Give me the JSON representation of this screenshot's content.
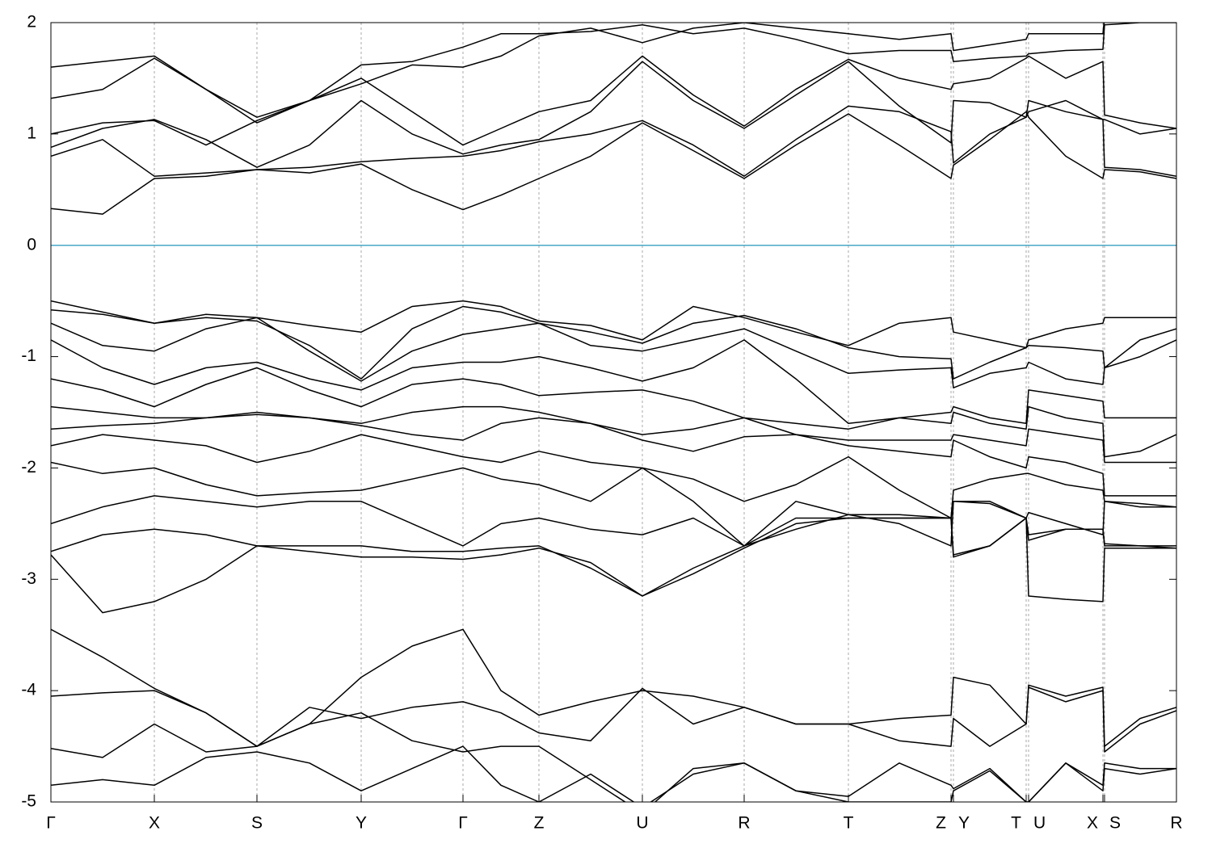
{
  "chart_data": {
    "type": "line",
    "x": [
      0,
      64,
      128,
      192,
      255,
      320,
      384,
      447,
      510,
      557,
      604,
      668,
      732,
      795,
      858,
      922,
      987,
      1050,
      1114,
      1117,
      1162,
      1207,
      1210,
      1256,
      1302,
      1304,
      1348,
      1393
    ],
    "xlim": [
      0,
      1393
    ],
    "xticks": [
      {
        "value": 0,
        "label": "Γ"
      },
      {
        "value": 128,
        "label": "X"
      },
      {
        "value": 255,
        "label": "S"
      },
      {
        "value": 384,
        "label": "Y"
      },
      {
        "value": 510,
        "label": "Γ"
      },
      {
        "value": 604,
        "label": "Z"
      },
      {
        "value": 732,
        "label": "U"
      },
      {
        "value": 858,
        "label": "R"
      },
      {
        "value": 987,
        "label": "T"
      },
      {
        "value": 1114,
        "label": "Z"
      },
      {
        "value": 1117,
        "label": "Y"
      },
      {
        "value": 1207,
        "label": "T"
      },
      {
        "value": 1210,
        "label": "U"
      },
      {
        "value": 1302,
        "label": "X"
      },
      {
        "value": 1304,
        "label": "S"
      },
      {
        "value": 1393,
        "label": "R"
      }
    ],
    "ylim": [
      -5,
      2
    ],
    "yticks": [
      -5,
      -4,
      -3,
      -2,
      -1,
      0,
      1,
      2
    ],
    "grid": true,
    "color": "#000000",
    "zero_line": {
      "value": 0,
      "color": "#4aa8c8"
    },
    "series": [
      {
        "values": [
          0.33,
          0.28,
          0.6,
          0.62,
          0.68,
          0.65,
          0.73,
          0.5,
          0.32,
          0.45,
          0.6,
          0.8,
          1.1,
          0.85,
          0.6,
          0.9,
          1.18,
          0.9,
          0.6,
          0.72,
          0.95,
          1.2,
          1.15,
          0.8,
          0.6,
          0.68,
          0.66,
          0.6
        ]
      },
      {
        "values": [
          0.8,
          0.95,
          0.62,
          0.65,
          0.68,
          0.7,
          0.75,
          0.78,
          0.8,
          0.85,
          0.93,
          1.0,
          1.12,
          0.9,
          0.62,
          0.95,
          1.25,
          1.2,
          1.02,
          0.74,
          1.0,
          1.15,
          1.3,
          1.2,
          1.13,
          1.13,
          1.0,
          1.05
        ]
      },
      {
        "values": [
          0.88,
          1.05,
          1.13,
          0.95,
          0.7,
          0.9,
          1.3,
          1.0,
          0.82,
          0.9,
          0.95,
          1.2,
          1.65,
          1.3,
          1.05,
          1.35,
          1.65,
          1.25,
          0.92,
          1.3,
          1.28,
          1.15,
          1.2,
          1.3,
          1.13,
          0.7,
          0.68,
          0.62
        ]
      },
      {
        "values": [
          1.0,
          1.1,
          1.12,
          0.9,
          1.12,
          1.3,
          1.5,
          1.2,
          0.9,
          1.05,
          1.2,
          1.3,
          1.7,
          1.35,
          1.07,
          1.4,
          1.67,
          1.5,
          1.4,
          1.45,
          1.5,
          1.68,
          1.7,
          1.5,
          1.65,
          1.17,
          1.1,
          1.05
        ]
      },
      {
        "values": [
          1.32,
          1.4,
          1.68,
          1.4,
          1.15,
          1.3,
          1.62,
          1.65,
          1.78,
          1.9,
          1.9,
          1.92,
          1.98,
          1.9,
          1.95,
          1.85,
          1.72,
          1.75,
          1.75,
          1.65,
          1.68,
          1.7,
          1.72,
          1.75,
          1.76,
          1.98,
          2.0,
          2.0
        ]
      },
      {
        "values": [
          1.6,
          1.65,
          1.7,
          1.4,
          1.1,
          1.3,
          1.45,
          1.62,
          1.6,
          1.7,
          1.88,
          1.95,
          1.82,
          1.95,
          2.0,
          1.95,
          1.9,
          1.85,
          1.9,
          1.75,
          1.8,
          1.85,
          1.9,
          1.9,
          1.9,
          2.05,
          2.05,
          2.05
        ]
      },
      {
        "values": [
          -0.5,
          -0.6,
          -0.7,
          -0.62,
          -0.65,
          -0.72,
          -0.78,
          -0.55,
          -0.5,
          -0.55,
          -0.68,
          -0.72,
          -0.85,
          -0.55,
          -0.65,
          -0.78,
          -0.9,
          -0.7,
          -0.65,
          -0.78,
          -0.85,
          -0.92,
          -0.85,
          -0.75,
          -0.7,
          -0.65,
          -0.65,
          -0.65
        ]
      },
      {
        "values": [
          -0.58,
          -0.62,
          -0.7,
          -0.65,
          -0.68,
          -0.9,
          -1.2,
          -0.75,
          -0.55,
          -0.6,
          -0.7,
          -0.78,
          -0.88,
          -0.7,
          -0.63,
          -0.75,
          -0.92,
          -1.0,
          -1.02,
          -1.2,
          -1.05,
          -0.92,
          -0.9,
          -0.92,
          -0.95,
          -1.1,
          -0.85,
          -0.75
        ]
      },
      {
        "values": [
          -0.7,
          -0.9,
          -0.95,
          -0.75,
          -0.65,
          -0.95,
          -1.22,
          -0.95,
          -0.8,
          -0.75,
          -0.7,
          -0.9,
          -0.95,
          -0.85,
          -0.75,
          -0.95,
          -1.15,
          -1.12,
          -1.1,
          -1.28,
          -1.15,
          -1.1,
          -1.05,
          -1.2,
          -1.25,
          -1.1,
          -1.0,
          -0.85
        ]
      },
      {
        "values": [
          -0.85,
          -1.1,
          -1.25,
          -1.1,
          -1.05,
          -1.2,
          -1.3,
          -1.1,
          -1.05,
          -1.05,
          -1.0,
          -1.1,
          -1.22,
          -1.1,
          -0.85,
          -1.2,
          -1.6,
          -1.55,
          -1.5,
          -1.45,
          -1.55,
          -1.6,
          -1.3,
          -1.35,
          -1.4,
          -1.55,
          -1.55,
          -1.55
        ]
      },
      {
        "values": [
          -1.2,
          -1.3,
          -1.45,
          -1.25,
          -1.1,
          -1.3,
          -1.45,
          -1.25,
          -1.2,
          -1.25,
          -1.35,
          -1.32,
          -1.3,
          -1.4,
          -1.55,
          -1.6,
          -1.65,
          -1.55,
          -1.6,
          -1.5,
          -1.6,
          -1.65,
          -1.45,
          -1.55,
          -1.6,
          -1.9,
          -1.85,
          -1.7
        ]
      },
      {
        "values": [
          -1.45,
          -1.5,
          -1.55,
          -1.55,
          -1.5,
          -1.55,
          -1.6,
          -1.5,
          -1.45,
          -1.45,
          -1.5,
          -1.6,
          -1.7,
          -1.65,
          -1.55,
          -1.7,
          -1.75,
          -1.75,
          -1.75,
          -1.7,
          -1.75,
          -1.8,
          -1.65,
          -1.7,
          -1.75,
          -1.95,
          -1.95,
          -1.95
        ]
      },
      {
        "values": [
          -1.65,
          -1.62,
          -1.6,
          -1.55,
          -1.52,
          -1.55,
          -1.62,
          -1.7,
          -1.75,
          -1.6,
          -1.55,
          -1.6,
          -1.75,
          -1.85,
          -1.72,
          -1.7,
          -1.8,
          -1.85,
          -1.9,
          -1.75,
          -1.9,
          -2.0,
          -1.9,
          -1.95,
          -2.05,
          -2.25,
          -2.25,
          -2.25
        ]
      },
      {
        "values": [
          -1.8,
          -1.7,
          -1.75,
          -1.8,
          -1.95,
          -1.85,
          -1.7,
          -1.8,
          -1.9,
          -1.95,
          -1.85,
          -1.95,
          -2.0,
          -2.1,
          -2.3,
          -2.15,
          -1.9,
          -2.2,
          -2.45,
          -2.2,
          -2.1,
          -2.05,
          -2.05,
          -2.15,
          -2.2,
          -2.3,
          -2.35,
          -2.35
        ]
      },
      {
        "values": [
          -1.95,
          -2.05,
          -2.0,
          -2.15,
          -2.25,
          -2.22,
          -2.2,
          -2.1,
          -2.0,
          -2.1,
          -2.15,
          -2.3,
          -2.0,
          -2.3,
          -2.7,
          -2.3,
          -2.42,
          -2.42,
          -2.45,
          -2.3,
          -2.3,
          -2.45,
          -2.6,
          -2.55,
          -2.55,
          -2.7,
          -2.7,
          -2.72
        ]
      },
      {
        "values": [
          -2.5,
          -2.35,
          -2.25,
          -2.3,
          -2.35,
          -2.3,
          -2.3,
          -2.5,
          -2.7,
          -2.5,
          -2.45,
          -2.55,
          -2.6,
          -2.45,
          -2.7,
          -2.45,
          -2.45,
          -2.45,
          -2.45,
          -2.8,
          -2.7,
          -2.45,
          -2.65,
          -2.55,
          -2.55,
          -2.68,
          -2.7,
          -2.7
        ]
      },
      {
        "values": [
          -2.75,
          -2.6,
          -2.55,
          -2.6,
          -2.7,
          -2.7,
          -2.7,
          -2.75,
          -2.75,
          -2.72,
          -2.7,
          -2.9,
          -3.15,
          -2.95,
          -2.72,
          -2.5,
          -2.45,
          -2.45,
          -2.45,
          -2.78,
          -2.7,
          -2.45,
          -3.15,
          -3.18,
          -3.2,
          -2.72,
          -2.72,
          -2.72
        ]
      },
      {
        "values": [
          -2.78,
          -3.3,
          -3.2,
          -3.0,
          -2.7,
          -2.75,
          -2.8,
          -2.8,
          -2.82,
          -2.78,
          -2.72,
          -2.85,
          -3.15,
          -2.9,
          -2.7,
          -2.55,
          -2.42,
          -2.5,
          -2.7,
          -2.3,
          -2.32,
          -2.45,
          -2.4,
          -2.5,
          -2.6,
          -2.3,
          -2.32,
          -2.35
        ]
      },
      {
        "values": [
          -3.45,
          -3.7,
          -3.98,
          -4.2,
          -4.5,
          -4.3,
          -3.88,
          -3.6,
          -3.45,
          -4.0,
          -4.22,
          -4.1,
          -4.0,
          -4.05,
          -4.15,
          -4.3,
          -4.3,
          -4.25,
          -4.22,
          -3.88,
          -3.95,
          -4.3,
          -3.95,
          -4.05,
          -3.97,
          -4.5,
          -4.25,
          -4.15
        ]
      },
      {
        "values": [
          -4.05,
          -4.02,
          -4.0,
          -4.2,
          -4.5,
          -4.15,
          -4.25,
          -4.15,
          -4.1,
          -4.2,
          -4.38,
          -4.45,
          -3.98,
          -4.3,
          -4.15,
          -4.3,
          -4.3,
          -4.45,
          -4.5,
          -4.25,
          -4.5,
          -4.3,
          -3.97,
          -4.1,
          -4.0,
          -4.55,
          -4.3,
          -4.18
        ]
      },
      {
        "values": [
          -4.52,
          -4.6,
          -4.3,
          -4.55,
          -4.5,
          -4.3,
          -4.2,
          -4.45,
          -4.55,
          -4.5,
          -4.5,
          -4.8,
          -5.1,
          -4.7,
          -4.65,
          -4.9,
          -4.95,
          -4.65,
          -4.85,
          -4.88,
          -4.7,
          -5.0,
          -5.0,
          -4.65,
          -4.85,
          -4.65,
          -4.7,
          -4.7
        ]
      },
      {
        "values": [
          -4.85,
          -4.8,
          -4.85,
          -4.6,
          -4.55,
          -4.65,
          -4.9,
          -4.7,
          -4.5,
          -4.85,
          -5.0,
          -4.75,
          -5.05,
          -4.75,
          -4.65,
          -4.9,
          -5.0,
          -5.0,
          -5.0,
          -4.9,
          -4.72,
          -5.0,
          -5.0,
          -4.65,
          -4.9,
          -4.7,
          -4.75,
          -4.7
        ]
      }
    ]
  }
}
